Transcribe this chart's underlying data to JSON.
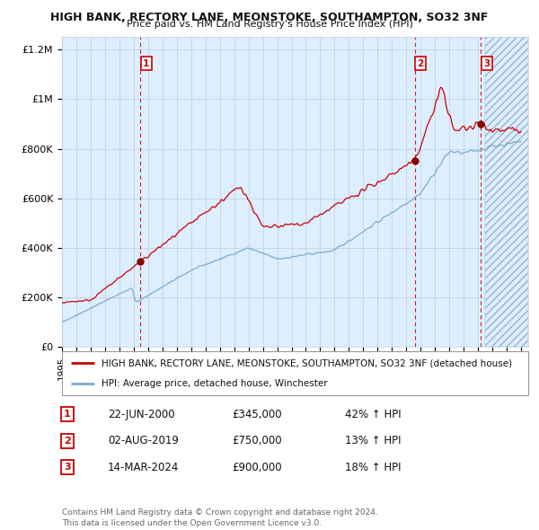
{
  "title1": "HIGH BANK, RECTORY LANE, MEONSTOKE, SOUTHAMPTON, SO32 3NF",
  "title2": "Price paid vs. HM Land Registry's House Price Index (HPI)",
  "legend_line1": "HIGH BANK, RECTORY LANE, MEONSTOKE, SOUTHAMPTON, SO32 3NF (detached house)",
  "legend_line2": "HPI: Average price, detached house, Winchester",
  "sales": [
    {
      "num": 1,
      "date_label": "22-JUN-2000",
      "x_year": 2000.47,
      "price": 345000,
      "hpi_rel": "42% ↑ HPI"
    },
    {
      "num": 2,
      "date_label": "02-AUG-2019",
      "x_year": 2019.58,
      "price": 750000,
      "hpi_rel": "13% ↑ HPI"
    },
    {
      "num": 3,
      "date_label": "14-MAR-2024",
      "x_year": 2024.2,
      "price": 900000,
      "hpi_rel": "18% ↑ HPI"
    }
  ],
  "xmin": 1995.0,
  "xmax": 2027.5,
  "ymin": 0,
  "ymax": 1250000,
  "yticks": [
    0,
    200000,
    400000,
    600000,
    800000,
    1000000,
    1200000
  ],
  "ytick_labels": [
    "£0",
    "£200K",
    "£400K",
    "£600K",
    "£800K",
    "£1M",
    "£1.2M"
  ],
  "xticks": [
    1995,
    1996,
    1997,
    1998,
    1999,
    2000,
    2001,
    2002,
    2003,
    2004,
    2005,
    2006,
    2007,
    2008,
    2009,
    2010,
    2011,
    2012,
    2013,
    2014,
    2015,
    2016,
    2017,
    2018,
    2019,
    2020,
    2021,
    2022,
    2023,
    2024,
    2025,
    2026,
    2027
  ],
  "property_color": "#cc0000",
  "hpi_color": "#7aabcc",
  "chart_bg_color": "#ddeeff",
  "sale_marker_color": "#880000",
  "vline_color": "#cc0000",
  "background_color": "#ffffff",
  "grid_color": "#bbccdd",
  "future_cutoff": 2024.5,
  "footnote": "Contains HM Land Registry data © Crown copyright and database right 2024.\nThis data is licensed under the Open Government Licence v3.0."
}
